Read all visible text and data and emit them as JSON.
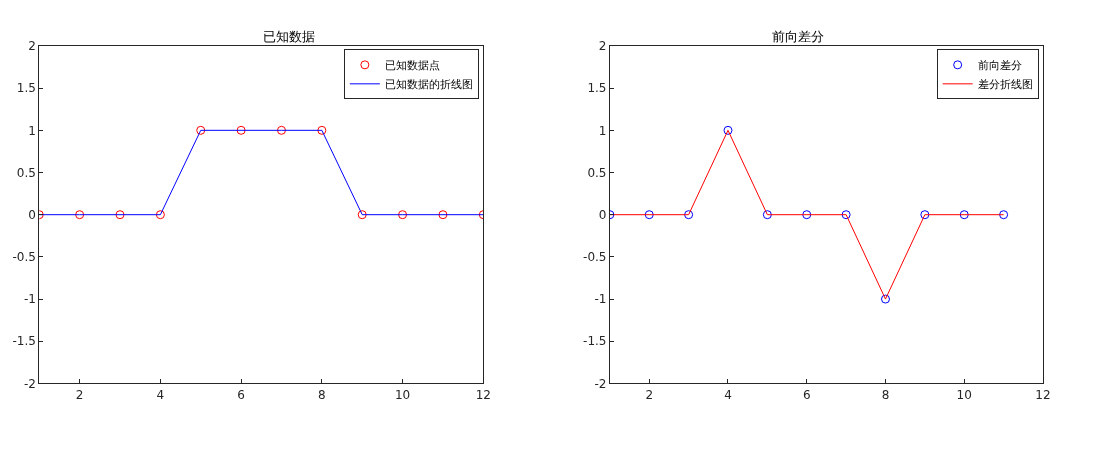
{
  "chart_data": [
    {
      "type": "line",
      "title": "已知数据",
      "x": [
        1,
        2,
        3,
        4,
        5,
        6,
        7,
        8,
        9,
        10,
        11,
        12
      ],
      "xlim": [
        1,
        12
      ],
      "xticks": [
        2,
        4,
        6,
        8,
        10,
        12
      ],
      "ylim": [
        -2,
        2
      ],
      "yticks": [
        -2,
        -1.5,
        -1,
        -0.5,
        0,
        0.5,
        1,
        1.5,
        2
      ],
      "legend": "top right",
      "series": [
        {
          "name": "已知数据点",
          "type": "scatter",
          "marker": "circle",
          "color": "#ff0000",
          "values": [
            0,
            0,
            0,
            0,
            1,
            1,
            1,
            1,
            0,
            0,
            0,
            0
          ]
        },
        {
          "name": "已知数据的折线图",
          "color": "#0000ff",
          "values": [
            0,
            0,
            0,
            0,
            1,
            1,
            1,
            1,
            0,
            0,
            0,
            0
          ]
        }
      ]
    },
    {
      "type": "line",
      "title": "前向差分",
      "x": [
        1,
        2,
        3,
        4,
        5,
        6,
        7,
        8,
        9,
        10,
        11
      ],
      "xlim": [
        1,
        12
      ],
      "xticks": [
        2,
        4,
        6,
        8,
        10,
        12
      ],
      "ylim": [
        -2,
        2
      ],
      "yticks": [
        -2,
        -1.5,
        -1,
        -0.5,
        0,
        0.5,
        1,
        1.5,
        2
      ],
      "legend": "top right",
      "series": [
        {
          "name": "前向差分",
          "type": "scatter",
          "marker": "circle",
          "color": "#0000ff",
          "values": [
            0,
            0,
            0,
            1,
            0,
            0,
            0,
            -1,
            0,
            0,
            0
          ]
        },
        {
          "name": "差分折线图",
          "color": "#ff0000",
          "values": [
            0,
            0,
            0,
            1,
            0,
            0,
            0,
            -1,
            0,
            0,
            0
          ]
        }
      ]
    }
  ]
}
